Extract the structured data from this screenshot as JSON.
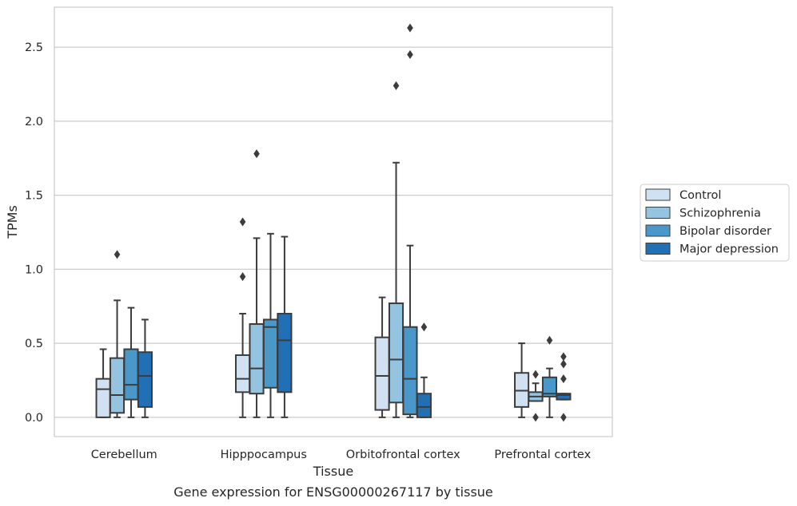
{
  "chart_data": {
    "type": "boxplot",
    "title": "",
    "caption": "Gene expression for ENSG00000267117 by tissue",
    "xlabel": "Tissue",
    "ylabel": "TPMs",
    "ylim": [
      -0.13,
      2.77
    ],
    "yticks": [
      0.0,
      0.5,
      1.0,
      1.5,
      2.0,
      2.5
    ],
    "ytick_labels": [
      "0.0",
      "0.5",
      "1.0",
      "1.5",
      "2.0",
      "2.5"
    ],
    "grid": "horizontal",
    "legend_position": "right",
    "categories": [
      "Cerebellum",
      "Hipppocampus",
      "Orbitofrontal cortex",
      "Prefrontal cortex"
    ],
    "series": [
      {
        "name": "Control",
        "color": "#d0e1f2",
        "boxes": [
          {
            "whislo": 0.0,
            "q1": 0.0,
            "med": 0.19,
            "q3": 0.26,
            "whishi": 0.46,
            "fliers": []
          },
          {
            "whislo": 0.0,
            "q1": 0.17,
            "med": 0.26,
            "q3": 0.42,
            "whishi": 0.7,
            "fliers": [
              0.95,
              1.32
            ]
          },
          {
            "whislo": 0.0,
            "q1": 0.05,
            "med": 0.28,
            "q3": 0.54,
            "whishi": 0.81,
            "fliers": []
          },
          {
            "whislo": 0.0,
            "q1": 0.07,
            "med": 0.18,
            "q3": 0.3,
            "whishi": 0.5,
            "fliers": []
          }
        ]
      },
      {
        "name": "Schizophrenia",
        "color": "#94c4df",
        "boxes": [
          {
            "whislo": 0.0,
            "q1": 0.03,
            "med": 0.15,
            "q3": 0.4,
            "whishi": 0.79,
            "fliers": [
              1.1
            ]
          },
          {
            "whislo": 0.0,
            "q1": 0.16,
            "med": 0.33,
            "q3": 0.63,
            "whishi": 1.21,
            "fliers": [
              1.78
            ]
          },
          {
            "whislo": 0.0,
            "q1": 0.1,
            "med": 0.39,
            "q3": 0.77,
            "whishi": 1.72,
            "fliers": [
              2.24
            ]
          },
          {
            "whislo": 0.11,
            "q1": 0.11,
            "med": 0.14,
            "q3": 0.17,
            "whishi": 0.23,
            "fliers": [
              0.0,
              0.29
            ]
          }
        ]
      },
      {
        "name": "Bipolar disorder",
        "color": "#4a98c9",
        "boxes": [
          {
            "whislo": 0.0,
            "q1": 0.12,
            "med": 0.22,
            "q3": 0.46,
            "whishi": 0.74,
            "fliers": []
          },
          {
            "whislo": 0.0,
            "q1": 0.2,
            "med": 0.61,
            "q3": 0.66,
            "whishi": 1.24,
            "fliers": []
          },
          {
            "whislo": 0.0,
            "q1": 0.02,
            "med": 0.26,
            "q3": 0.61,
            "whishi": 1.16,
            "fliers": [
              2.45,
              2.63
            ]
          },
          {
            "whislo": 0.0,
            "q1": 0.14,
            "med": 0.16,
            "q3": 0.27,
            "whishi": 0.33,
            "fliers": [
              0.52
            ]
          }
        ]
      },
      {
        "name": "Major depression",
        "color": "#2170b5",
        "boxes": [
          {
            "whislo": 0.0,
            "q1": 0.07,
            "med": 0.28,
            "q3": 0.44,
            "whishi": 0.66,
            "fliers": []
          },
          {
            "whislo": 0.0,
            "q1": 0.17,
            "med": 0.52,
            "q3": 0.7,
            "whishi": 1.22,
            "fliers": []
          },
          {
            "whislo": 0.0,
            "q1": 0.0,
            "med": 0.07,
            "q3": 0.16,
            "whishi": 0.27,
            "fliers": [
              0.61
            ]
          },
          {
            "whislo": 0.12,
            "q1": 0.12,
            "med": 0.15,
            "q3": 0.16,
            "whishi": 0.16,
            "fliers": [
              0.0,
              0.26,
              0.36,
              0.41
            ]
          }
        ]
      }
    ]
  }
}
